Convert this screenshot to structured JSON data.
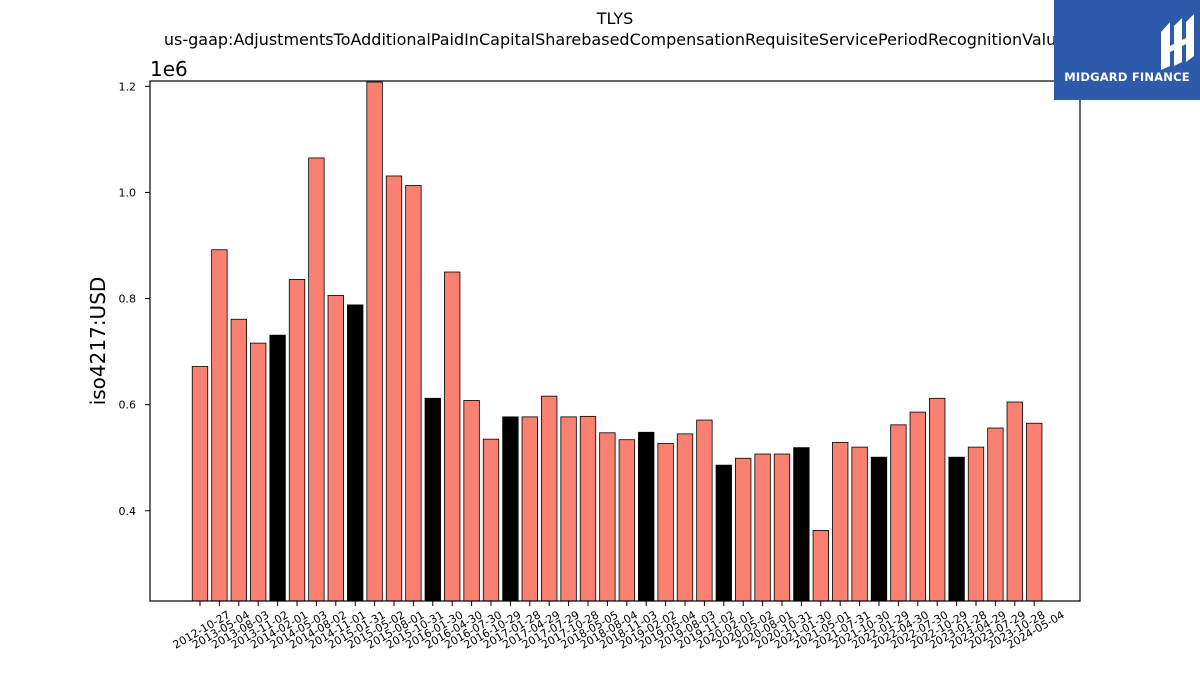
{
  "header": {
    "title": "TLYS",
    "subtitle": "us-gaap:AdjustmentsToAdditionalPaidInCapitalSharebasedCompensationRequisiteServicePeriodRecognitionValue"
  },
  "logo": {
    "text": "MIDGARD FINANCE",
    "color": "#2e5aac"
  },
  "chart_data": {
    "type": "bar",
    "ylabel": "iso4217:USD",
    "y_scale_note": "1e6",
    "ylim": [
      0.23,
      1.21
    ],
    "yticks": [
      "0.4",
      "0.6",
      "0.8",
      "1.0",
      "1.2"
    ],
    "colors": {
      "default": "#fa8072",
      "highlight": "#000000",
      "edge": "#000000"
    },
    "categories": [
      "2012-10-27",
      "2013-05-04",
      "2013-08-03",
      "2013-11-02",
      "2014-02-01",
      "2014-05-03",
      "2014-08-02",
      "2014-11-01",
      "2015-01-31",
      "2015-05-02",
      "2015-08-01",
      "2015-10-31",
      "2016-01-30",
      "2016-04-30",
      "2016-07-30",
      "2016-10-29",
      "2017-01-28",
      "2017-04-29",
      "2017-07-29",
      "2017-10-28",
      "2018-05-05",
      "2018-08-04",
      "2018-11-03",
      "2019-02-02",
      "2019-05-04",
      "2019-08-03",
      "2019-11-02",
      "2020-02-01",
      "2020-05-02",
      "2020-08-01",
      "2020-10-31",
      "2021-01-30",
      "2021-05-01",
      "2021-07-31",
      "2021-10-30",
      "2022-01-29",
      "2022-04-30",
      "2022-07-30",
      "2022-10-29",
      "2023-01-28",
      "2023-04-29",
      "2023-07-29",
      "2023-10-28",
      "2024-05-04"
    ],
    "values": [
      0.672,
      0.892,
      0.761,
      0.716,
      0.731,
      0.836,
      1.065,
      0.806,
      0.788,
      1.208,
      1.031,
      1.013,
      0.612,
      0.85,
      0.608,
      0.535,
      0.577,
      0.577,
      0.616,
      0.577,
      0.578,
      0.547,
      0.534,
      0.548,
      0.527,
      0.545,
      0.571,
      0.486,
      0.499,
      0.507,
      0.507,
      0.519,
      0.363,
      0.529,
      0.52,
      0.501,
      0.562,
      0.586,
      0.612,
      0.501,
      0.52,
      0.556,
      0.605,
      0.565
    ],
    "highlight": [
      false,
      false,
      false,
      false,
      true,
      false,
      false,
      false,
      true,
      false,
      false,
      false,
      true,
      false,
      false,
      false,
      true,
      false,
      false,
      false,
      false,
      false,
      false,
      true,
      false,
      false,
      false,
      true,
      false,
      false,
      false,
      true,
      false,
      false,
      false,
      true,
      false,
      false,
      false,
      true,
      false,
      false,
      false,
      false
    ]
  }
}
